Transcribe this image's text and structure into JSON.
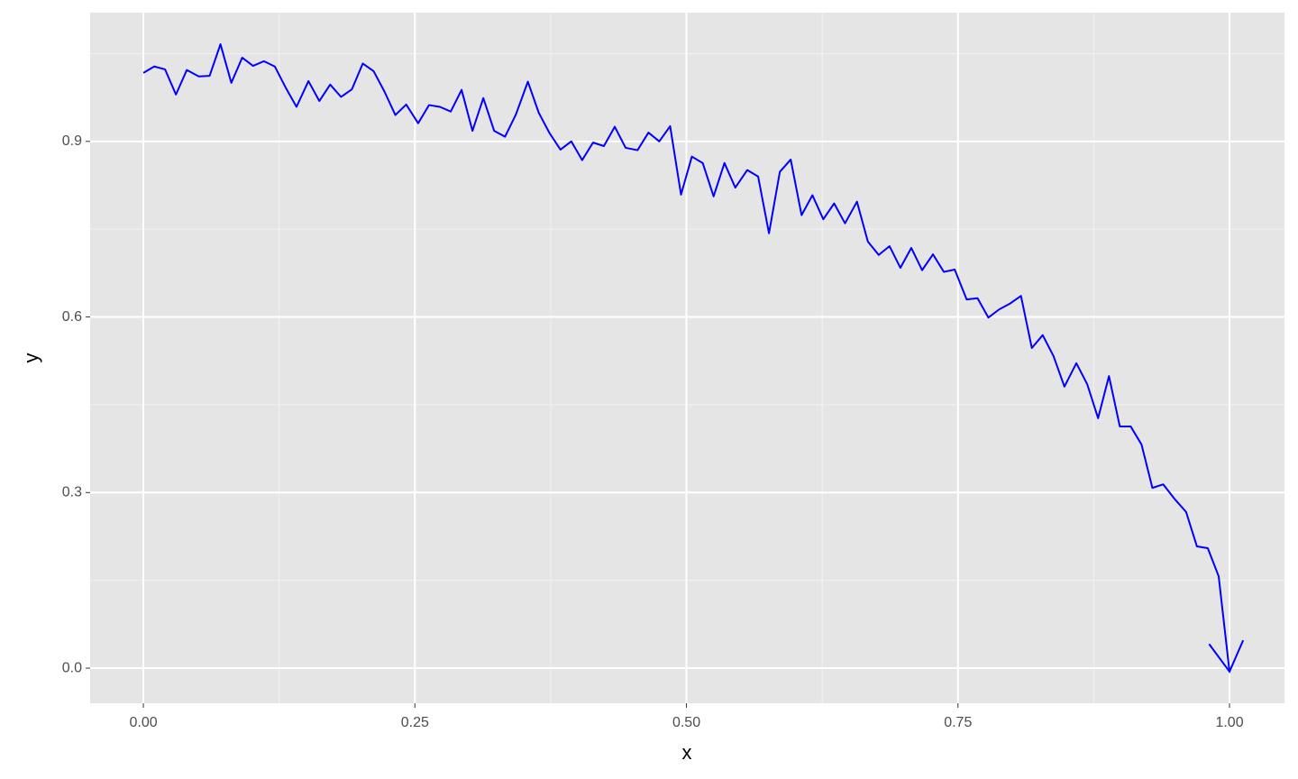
{
  "chart_data": {
    "type": "line",
    "xlabel": "x",
    "ylabel": "y",
    "x": [
      0,
      0.01,
      0.02,
      0.03,
      0.04,
      0.051,
      0.061,
      0.071,
      0.081,
      0.091,
      0.101,
      0.111,
      0.121,
      0.131,
      0.141,
      0.152,
      0.162,
      0.172,
      0.182,
      0.192,
      0.202,
      0.212,
      0.222,
      0.232,
      0.242,
      0.253,
      0.263,
      0.273,
      0.283,
      0.293,
      0.303,
      0.313,
      0.323,
      0.333,
      0.343,
      0.354,
      0.364,
      0.374,
      0.384,
      0.394,
      0.404,
      0.414,
      0.424,
      0.434,
      0.444,
      0.455,
      0.465,
      0.475,
      0.485,
      0.495,
      0.505,
      0.515,
      0.525,
      0.535,
      0.545,
      0.556,
      0.566,
      0.576,
      0.586,
      0.596,
      0.606,
      0.616,
      0.626,
      0.636,
      0.646,
      0.657,
      0.667,
      0.677,
      0.687,
      0.697,
      0.707,
      0.717,
      0.727,
      0.737,
      0.747,
      0.758,
      0.768,
      0.778,
      0.788,
      0.798,
      0.808,
      0.818,
      0.828,
      0.838,
      0.848,
      0.859,
      0.869,
      0.879,
      0.889,
      0.899,
      0.909,
      0.919,
      0.929,
      0.939,
      0.949,
      0.96,
      0.97,
      0.98,
      0.99,
      1.0
    ],
    "series": [
      {
        "color": "#0000ff",
        "values": [
          1.017,
          1.028,
          1.023,
          0.98,
          1.022,
          1.011,
          1.012,
          1.066,
          1.0,
          1.043,
          1.029,
          1.037,
          1.028,
          0.992,
          0.959,
          1.003,
          0.969,
          0.997,
          0.976,
          0.989,
          1.033,
          1.02,
          0.985,
          0.945,
          0.963,
          0.931,
          0.962,
          0.959,
          0.951,
          0.988,
          0.918,
          0.974,
          0.918,
          0.908,
          0.946,
          1.002,
          0.949,
          0.914,
          0.886,
          0.9,
          0.868,
          0.898,
          0.892,
          0.925,
          0.889,
          0.885,
          0.915,
          0.9,
          0.926,
          0.809,
          0.874,
          0.863,
          0.806,
          0.863,
          0.821,
          0.851,
          0.84,
          0.743,
          0.848,
          0.869,
          0.774,
          0.808,
          0.767,
          0.794,
          0.76,
          0.797,
          0.729,
          0.706,
          0.721,
          0.684,
          0.718,
          0.68,
          0.707,
          0.677,
          0.681,
          0.63,
          0.632,
          0.599,
          0.613,
          0.623,
          0.636,
          0.547,
          0.569,
          0.533,
          0.481,
          0.521,
          0.485,
          0.427,
          0.499,
          0.413,
          0.413,
          0.382,
          0.308,
          0.314,
          0.29,
          0.267,
          0.208,
          0.205,
          0.157,
          -0.006
        ]
      }
    ],
    "xlim": [
      -0.049,
      1.0506
    ],
    "ylim": [
      -0.06,
      1.12
    ],
    "xticks": [
      {
        "value": 0,
        "label": "0.00"
      },
      {
        "value": 0.25,
        "label": "0.25"
      },
      {
        "value": 0.5,
        "label": "0.50"
      },
      {
        "value": 0.75,
        "label": "0.75"
      },
      {
        "value": 1,
        "label": "1.00"
      }
    ],
    "yticks": [
      {
        "value": 0,
        "label": "0.0"
      },
      {
        "value": 0.3,
        "label": "0.3"
      },
      {
        "value": 0.6,
        "label": "0.6"
      },
      {
        "value": 0.9,
        "label": "0.9"
      }
    ],
    "grid": true
  }
}
